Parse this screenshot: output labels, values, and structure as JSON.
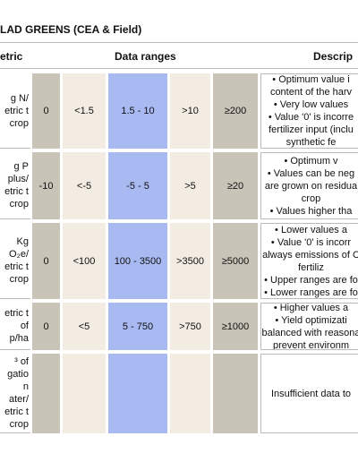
{
  "title": "LAD GREENS (CEA & Field)",
  "header": {
    "metric": "etric",
    "ranges": "Data ranges",
    "description": "Descrip"
  },
  "rows": [
    {
      "metric": [
        "g N/",
        "etric t",
        "crop"
      ],
      "values": [
        "0",
        "<1.5",
        "1.5 - 10",
        ">10",
        "≥200"
      ],
      "description": [
        "• Optimum value i",
        "content of the harv",
        "• Very low values",
        "• Value '0' is incorre",
        "fertilizer input (inclu",
        "synthetic fe"
      ]
    },
    {
      "metric": [
        "g P",
        "plus/",
        "etric t",
        "crop"
      ],
      "values": [
        "-10",
        "<-5",
        "-5 - 5",
        ">5",
        "≥20"
      ],
      "description": [
        "• Optimum v",
        "• Values can be neg",
        "are grown on residua",
        "crop",
        "• Values higher tha"
      ]
    },
    {
      "metric": [
        "Kg",
        "O₂e/",
        "etric t",
        "crop"
      ],
      "values": [
        "0",
        "<100",
        "100 - 3500",
        ">3500",
        "≥5000"
      ],
      "description": [
        "• Lower values a",
        "• Value '0' is incorr",
        "always emissions of C",
        "fertiliz",
        "• Upper ranges are fo",
        "• Lower ranges are fo"
      ]
    },
    {
      "metric": [
        "etric t",
        "of",
        "p/ha"
      ],
      "values": [
        "0",
        "<5",
        "5 - 750",
        ">750",
        "≥1000"
      ],
      "description": [
        "• Higher values a",
        "• Yield optimizati",
        "balanced with reasona",
        "prevent environm"
      ]
    },
    {
      "metric": [
        "³ of",
        "gatio",
        "n",
        "ater/",
        "etric t",
        "crop"
      ],
      "values": [],
      "description": [
        "Insufficient data to"
      ]
    }
  ]
}
